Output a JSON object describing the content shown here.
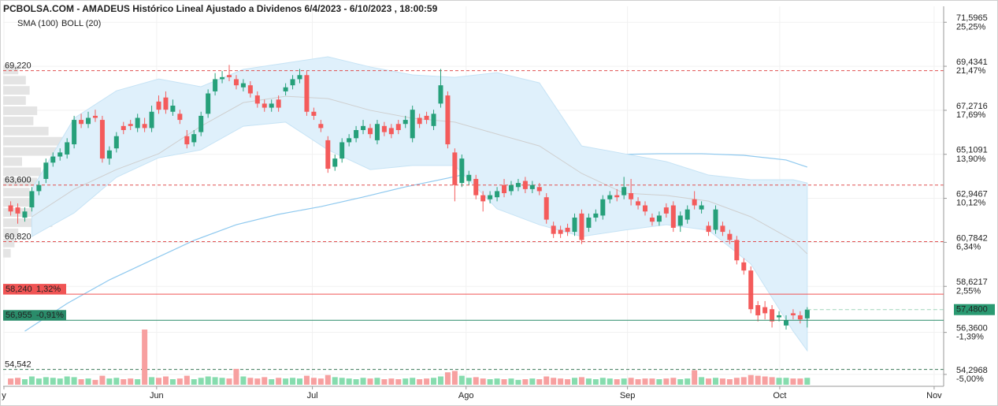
{
  "chart_data": {
    "type": "candlestick",
    "title": "PCBOLSA.COM - AMADEUS Histórico Lineal Ajustado a Dividenos 6/4/2023 - 6/10/2023 , 18:00:59",
    "open": [
      62.6,
      62.5,
      62.0,
      62.5,
      63.3,
      63.9,
      64.7,
      65.0,
      65.1,
      65.6,
      66.8,
      66.6,
      67.0,
      66.8,
      64.9,
      65.4,
      66.5,
      66.6,
      66.4,
      66.6,
      66.4,
      67.7,
      67.9,
      67.2,
      67.1,
      66.0,
      65.7,
      66.2,
      67.1,
      68.2,
      68.8,
      69.0,
      68.8,
      68.4,
      68.5,
      68.0,
      67.6,
      67.4,
      67.8,
      68.2,
      68.5,
      68.8,
      69.0,
      67.2,
      66.6,
      65.8,
      64.5,
      64.9,
      65.7,
      65.9,
      66.3,
      66.4,
      65.8,
      66.5,
      66.4,
      66.6,
      66.6,
      65.9,
      66.9,
      67.0,
      66.5,
      67.6,
      68.0,
      65.2,
      63.7,
      63.8,
      63.9,
      63.1,
      62.9,
      63.0,
      63.6,
      63.3,
      63.5,
      63.8,
      63.4,
      63.5,
      63.0,
      61.6,
      61.4,
      61.5,
      61.3,
      62.2,
      61.5,
      62.0,
      62.1,
      62.9,
      63.1,
      63.1,
      63.2,
      62.8,
      62.6,
      62.0,
      61.8,
      62.5,
      62.6,
      61.6,
      61.9,
      62.9,
      62.4,
      61.6,
      61.4,
      61.6,
      61.2,
      60.9,
      59.8,
      59.4,
      57.7,
      57.6,
      57.5,
      57.1,
      56.7,
      57.3,
      57.2,
      57.05
    ],
    "high": [
      62.8,
      62.7,
      62.5,
      63.5,
      63.8,
      64.9,
      65.2,
      65.4,
      65.9,
      67.0,
      67.1,
      67.2,
      67.3,
      67.0,
      65.5,
      66.2,
      66.7,
      66.8,
      67.1,
      66.9,
      67.5,
      68.0,
      68.2,
      67.8,
      67.3,
      66.3,
      66.3,
      67.2,
      68.3,
      69.1,
      69.2,
      69.5,
      69.0,
      68.8,
      68.7,
      68.2,
      67.8,
      67.8,
      68.0,
      68.6,
      69.0,
      69.3,
      69.2,
      67.4,
      66.8,
      66.0,
      65.1,
      65.9,
      66.1,
      66.5,
      66.8,
      66.6,
      66.8,
      66.7,
      66.6,
      66.8,
      67.0,
      67.5,
      67.1,
      67.2,
      67.3,
      69.3,
      68.2,
      65.4,
      65.1,
      64.3,
      64.1,
      63.3,
      63.3,
      63.5,
      63.9,
      63.8,
      63.9,
      64.0,
      63.8,
      63.7,
      63.2,
      61.8,
      61.6,
      61.7,
      62.2,
      62.4,
      62.2,
      62.4,
      63.1,
      63.3,
      63.4,
      64.0,
      63.9,
      63.0,
      62.8,
      62.2,
      62.3,
      62.7,
      62.8,
      62.3,
      62.6,
      63.3,
      62.8,
      61.8,
      62.6,
      61.8,
      61.4,
      61.1,
      60.0,
      59.6,
      57.9,
      57.9,
      57.7,
      57.4,
      57.2,
      57.5,
      57.4,
      57.6
    ],
    "low": [
      62.1,
      61.7,
      61.8,
      62.3,
      63.1,
      63.7,
      64.5,
      64.8,
      64.9,
      65.4,
      66.4,
      66.4,
      66.7,
      64.7,
      64.6,
      65.2,
      66.1,
      66.3,
      66.2,
      66.2,
      66.2,
      67.1,
      67.1,
      67.0,
      66.6,
      65.4,
      65.5,
      66.0,
      66.9,
      68.0,
      68.6,
      68.7,
      68.3,
      68.2,
      67.9,
      67.4,
      67.2,
      67.2,
      67.2,
      68.0,
      68.3,
      68.6,
      67.0,
      66.8,
      66.2,
      64.2,
      64.3,
      64.7,
      65.5,
      65.7,
      66.1,
      65.9,
      65.6,
      66.0,
      65.9,
      66.1,
      66.4,
      65.7,
      66.4,
      66.6,
      66.3,
      67.4,
      65.4,
      62.8,
      63.5,
      63.6,
      62.9,
      62.3,
      62.7,
      62.8,
      63.0,
      63.1,
      63.3,
      63.2,
      63.2,
      63.1,
      61.7,
      61.0,
      61.0,
      61.1,
      61.1,
      60.7,
      61.3,
      61.8,
      61.9,
      62.7,
      62.8,
      62.9,
      62.6,
      62.4,
      62.1,
      61.6,
      61.6,
      62.0,
      61.3,
      61.3,
      61.7,
      62.4,
      62.2,
      61.1,
      61.2,
      61.1,
      60.7,
      59.7,
      59.2,
      57.3,
      56.9,
      57.0,
      56.6,
      56.9,
      56.5,
      57.0,
      56.8,
      56.6
    ],
    "close": [
      62.3,
      62.2,
      62.3,
      63.3,
      63.6,
      64.7,
      65.0,
      65.2,
      65.7,
      66.8,
      66.6,
      66.9,
      66.9,
      64.9,
      65.3,
      66.0,
      66.3,
      66.5,
      66.9,
      66.4,
      67.2,
      67.3,
      67.3,
      67.5,
      66.8,
      65.6,
      66.1,
      67.0,
      68.1,
      68.8,
      68.9,
      68.9,
      68.5,
      68.6,
      68.1,
      67.6,
      67.4,
      67.6,
      67.4,
      68.4,
      68.8,
      69.0,
      67.2,
      67.0,
      66.4,
      64.4,
      64.9,
      65.7,
      65.9,
      66.3,
      66.5,
      66.1,
      66.6,
      66.2,
      66.1,
      66.3,
      66.8,
      67.3,
      66.6,
      66.8,
      67.1,
      68.5,
      65.6,
      63.6,
      64.9,
      64.1,
      63.1,
      62.8,
      63.1,
      63.3,
      63.2,
      63.6,
      63.7,
      63.4,
      63.6,
      63.3,
      61.9,
      61.2,
      61.2,
      61.3,
      62.0,
      60.9,
      62.0,
      62.2,
      62.9,
      63.1,
      63.0,
      63.5,
      62.9,
      62.6,
      62.3,
      61.8,
      62.1,
      62.2,
      61.5,
      62.1,
      62.4,
      62.6,
      62.6,
      61.3,
      62.4,
      61.3,
      60.9,
      59.9,
      59.4,
      57.5,
      57.2,
      57.3,
      56.9,
      57.2,
      56.95,
      57.2,
      57.0,
      57.48
    ],
    "volume": [
      0.9,
      1.0,
      0.8,
      1.2,
      0.9,
      1.1,
      1.0,
      0.9,
      1.2,
      1.1,
      0.8,
      0.9,
      0.7,
      1.3,
      0.9,
      1.0,
      0.8,
      0.9,
      0.8,
      8.0,
      1.1,
      1.0,
      1.2,
      0.8,
      0.9,
      1.3,
      0.8,
      1.0,
      1.2,
      1.1,
      1.0,
      0.9,
      2.3,
      1.2,
      1.0,
      0.9,
      1.1,
      0.8,
      1.0,
      0.9,
      1.0,
      0.9,
      1.3,
      1.0,
      0.9,
      1.4,
      1.1,
      1.0,
      0.9,
      0.8,
      1.0,
      0.9,
      1.0,
      0.8,
      0.9,
      0.8,
      0.9,
      1.0,
      0.8,
      0.9,
      1.0,
      1.2,
      1.8,
      2.0,
      1.3,
      1.0,
      1.1,
      0.9,
      0.8,
      0.9,
      0.8,
      0.9,
      0.7,
      0.8,
      0.9,
      0.8,
      1.2,
      1.0,
      0.9,
      0.8,
      1.0,
      1.1,
      0.9,
      0.8,
      1.0,
      0.9,
      0.8,
      0.9,
      1.0,
      0.8,
      0.9,
      0.9,
      0.8,
      0.9,
      1.0,
      0.8,
      0.9,
      2.1,
      1.1,
      0.9,
      1.0,
      0.9,
      0.8,
      1.0,
      1.1,
      1.4,
      1.3,
      1.2,
      1.1,
      1.0,
      1.0,
      0.9,
      0.9,
      1.0
    ],
    "up_color": "#26a07a",
    "down_color": "#f45b5b",
    "up_volume_color": "#86dcae",
    "down_volume_color": "#f7a0a0",
    "overlays": [
      {
        "name": "SMA (100)",
        "color": "#8fc9ef",
        "x": [
          2,
          8,
          14,
          20,
          26,
          32,
          38,
          44,
          50,
          56,
          62,
          68,
          74,
          80,
          86,
          92,
          98,
          104,
          110,
          113
        ],
        "values": [
          56.42,
          57.78,
          58.94,
          59.91,
          60.88,
          61.65,
          62.16,
          62.54,
          63.01,
          63.51,
          63.94,
          64.4,
          64.75,
          64.94,
          65.1,
          65.14,
          65.14,
          65.06,
          64.83,
          64.48
        ]
      },
      {
        "name": "BOLL (20)",
        "color": "#cfcfcf",
        "fill": "#dff0fb",
        "x": [
          3,
          9,
          15,
          21,
          27,
          33,
          39,
          45,
          51,
          57,
          63,
          69,
          75,
          81,
          87,
          93,
          99,
          105,
          111,
          113
        ],
        "upper": [
          63.39,
          66.88,
          68.23,
          68.81,
          68.43,
          69.28,
          69.59,
          69.9,
          69.4,
          69.01,
          68.89,
          69.12,
          68.62,
          65.52,
          65.14,
          64.75,
          64.09,
          63.86,
          63.86,
          63.7
        ],
        "middle": [
          62.04,
          63.39,
          64.36,
          65.14,
          66.49,
          67.65,
          67.96,
          67.85,
          67.27,
          66.88,
          66.69,
          66.1,
          65.52,
          64.17,
          63.2,
          63.09,
          62.81,
          62.04,
          60.88,
          60.22
        ],
        "lower": [
          61.07,
          62.23,
          63.98,
          64.94,
          65.33,
          66.49,
          66.69,
          65.33,
          64.36,
          64.56,
          64.56,
          62.43,
          61.65,
          61.07,
          61.38,
          61.65,
          61.38,
          59.72,
          56.42,
          55.46
        ]
      }
    ],
    "volume_profile": {
      "color": "#e4e4e4",
      "bins": [
        60.0,
        60.5,
        61.0,
        61.5,
        62.0,
        62.5,
        63.0,
        63.5,
        64.0,
        64.5,
        65.0,
        65.5,
        66.0,
        66.5,
        67.0,
        67.5,
        68.0,
        68.5,
        69.0,
        69.5
      ],
      "values": [
        10,
        15,
        20,
        65,
        60,
        40,
        35,
        45,
        50,
        25,
        70,
        125,
        60,
        40,
        45,
        30,
        35,
        30,
        20
      ]
    },
    "levels": [
      {
        "value": 69.22,
        "label": "69,220",
        "color": "#e05050"
      },
      {
        "value": 63.6,
        "label": "63,600",
        "color": "#e05050"
      },
      {
        "value": 60.82,
        "label": "60,820",
        "color": "#e05050"
      },
      {
        "value": 54.542,
        "label": "54,542",
        "color": "#3d7a5a"
      }
    ],
    "markers": [
      {
        "value": 58.24,
        "label": "58,240",
        "change": {
          "value": 1.32,
          "label": "1,32%"
        },
        "color": "#f05454"
      },
      {
        "value": 56.955,
        "label": "56,955",
        "change": {
          "value": -0.91,
          "label": "-0,91%"
        },
        "color": "#2a8c6a"
      }
    ],
    "last": {
      "value": 57.48,
      "label": "57,4800",
      "color": "#2a9a72"
    },
    "xlim": [
      -1.07,
      132.35
    ],
    "xticks": [
      {
        "value": -0.96,
        "label": "y"
      },
      {
        "value": 20.7,
        "label": "Jun"
      },
      {
        "value": 42.8,
        "label": "Jul"
      },
      {
        "value": 64.6,
        "label": "Ago"
      },
      {
        "value": 87.5,
        "label": "Sep"
      },
      {
        "value": 109.1,
        "label": "Oct"
      },
      {
        "value": 131.0,
        "label": "Nov"
      }
    ],
    "ylim": [
      53.79,
      72.38
    ],
    "yticks": [
      {
        "value": 71.5965,
        "label": "71,5965"
      },
      {
        "value": 69.4341,
        "label": "69,4341"
      },
      {
        "value": 67.2716,
        "label": "67,2716"
      },
      {
        "value": 65.1091,
        "label": "65,1091"
      },
      {
        "value": 62.9467,
        "label": "62,9467"
      },
      {
        "value": 60.7842,
        "label": "60,7842"
      },
      {
        "value": 58.6217,
        "label": "58,6217"
      },
      {
        "value": 56.36,
        "label": "56,3600"
      },
      {
        "value": 54.2968,
        "label": "54,2968"
      }
    ],
    "y2lim": [
      -5.89,
      26.63
    ],
    "y2ticks": [
      {
        "value": 25.25,
        "label": "25,25%"
      },
      {
        "value": 21.47,
        "label": "21,47%"
      },
      {
        "value": 17.69,
        "label": "17,69%"
      },
      {
        "value": 13.9,
        "label": "13,90%"
      },
      {
        "value": 10.12,
        "label": "10,12%"
      },
      {
        "value": 6.34,
        "label": "6,34%"
      },
      {
        "value": 2.55,
        "label": "2,55%"
      },
      {
        "value": -1.39,
        "label": "-1,39%"
      },
      {
        "value": -5.0,
        "label": "-5,00%"
      }
    ],
    "grid": true
  }
}
